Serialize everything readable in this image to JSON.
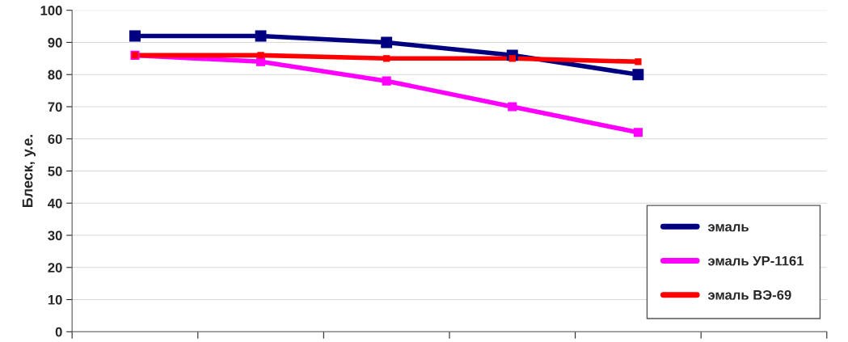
{
  "chart_data": {
    "type": "line",
    "ylabel": "Блеск, у.е.",
    "categories": [
      null,
      null,
      null,
      null,
      null,
      null
    ],
    "series": [
      {
        "name": "эмаль",
        "color": "#000080",
        "values": [
          92,
          92,
          90,
          86,
          80,
          null
        ]
      },
      {
        "name": "эмаль УР-1161",
        "color": "#ff00ff",
        "values": [
          86,
          84,
          78,
          70,
          62,
          null
        ]
      },
      {
        "name": "эмаль ВЭ-69",
        "color": "#ff0000",
        "values": [
          86,
          86,
          85,
          85,
          84,
          null
        ]
      }
    ],
    "ylim": [
      0,
      100
    ],
    "yticks": [
      0,
      10,
      20,
      30,
      40,
      50,
      60,
      70,
      80,
      90,
      100
    ],
    "grid": "y",
    "legend": "bottom right",
    "marker": "square",
    "line_style": "solid"
  }
}
